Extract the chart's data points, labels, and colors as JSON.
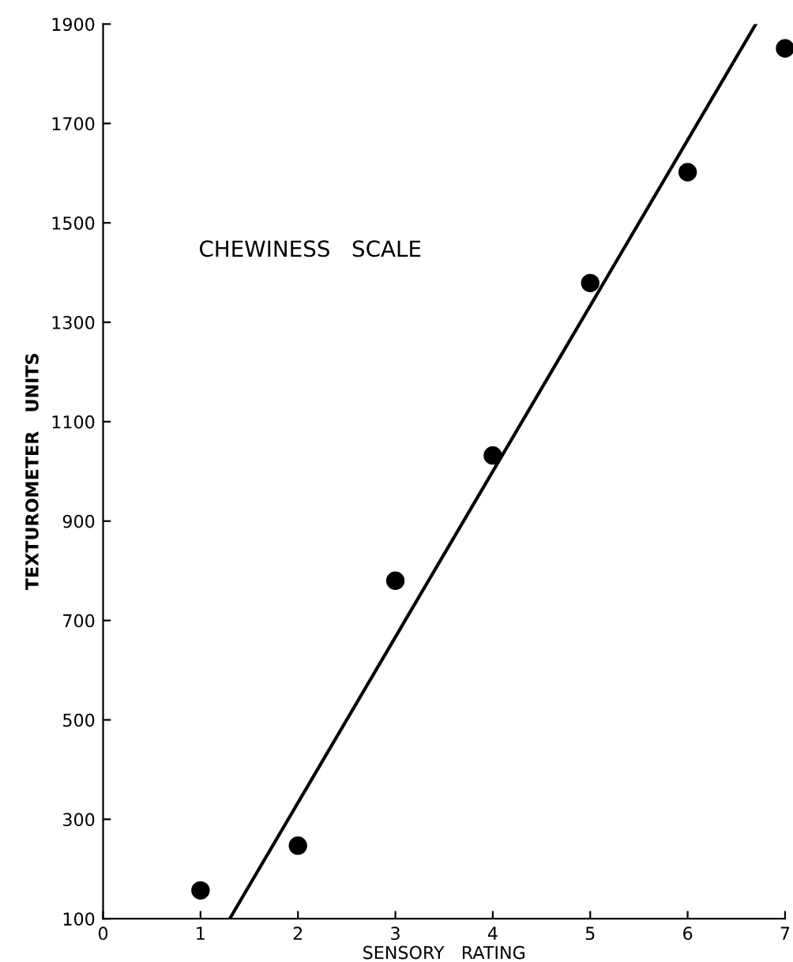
{
  "chart_data": {
    "type": "scatter",
    "xlabel": "SENSORY   RATING",
    "ylabel": "TEXTUROMETER   UNITS",
    "annotations": [
      "CHEWINESS   SCALE"
    ],
    "series": [
      {
        "color": "#000000",
        "marker": "circle",
        "x": [
          1,
          2,
          3,
          4,
          5,
          6,
          7
        ],
        "values": [
          157,
          247,
          780,
          1032,
          1379,
          1602,
          1851
        ]
      },
      {
        "type": "line",
        "color": "#000000",
        "x": [
          1.3,
          6.7
        ],
        "values": [
          100,
          1900
        ]
      }
    ],
    "grid": false,
    "xlim": [
      0,
      7
    ],
    "xticks": [
      0,
      1,
      2,
      3,
      4,
      5,
      6,
      7
    ],
    "ylim": [
      100,
      1900
    ],
    "yticks": [
      100,
      300,
      500,
      700,
      900,
      1100,
      1300,
      1500,
      1700,
      1900
    ]
  }
}
